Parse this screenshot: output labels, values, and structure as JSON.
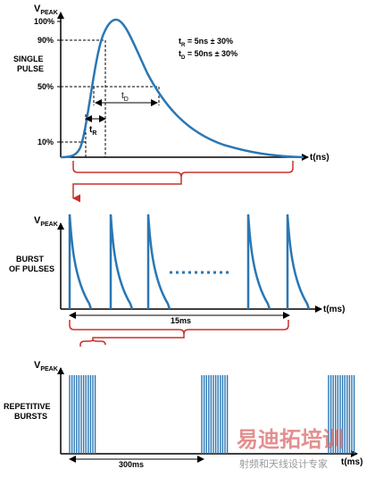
{
  "colors": {
    "pulse": "#2a77b4",
    "axis": "#000000",
    "bracket": "#c9302c",
    "text": "#000000",
    "watermark": "#d96a6a",
    "watermark_sub": "#9a9a9a"
  },
  "panel1": {
    "y_axis_label": "V",
    "y_axis_sub": "PEAK",
    "y_ticks": [
      "100%",
      "90%",
      "50%",
      "10%"
    ],
    "side_label_line1": "SINGLE",
    "side_label_line2": "PULSE",
    "spec_tr_main": "t",
    "spec_tr_sub": "R",
    "spec_tr_rest": " = 5ns ± 30%",
    "spec_td_main": "t",
    "spec_td_sub": "D",
    "spec_td_rest": " = 50ns ± 30%",
    "tr_label": "t",
    "tr_label_sub": "R",
    "td_label": "t",
    "td_label_sub": "D",
    "x_axis_label": "t(ns)"
  },
  "panel2": {
    "y_axis_label": "V",
    "y_axis_sub": "PEAK",
    "side_label_line1": "BURST",
    "side_label_line2": "OF PULSES",
    "span_label": "15ms",
    "x_axis_label": "t(ms)"
  },
  "panel3": {
    "y_axis_label": "V",
    "y_axis_sub": "PEAK",
    "side_label_line1": "REPETITIVE",
    "side_label_line2": "BURSTS",
    "span_label": "300ms",
    "x_axis_label": "t(ms)"
  },
  "watermark": {
    "main": "易迪拓培训",
    "sub": "射频和天线设计专家"
  }
}
